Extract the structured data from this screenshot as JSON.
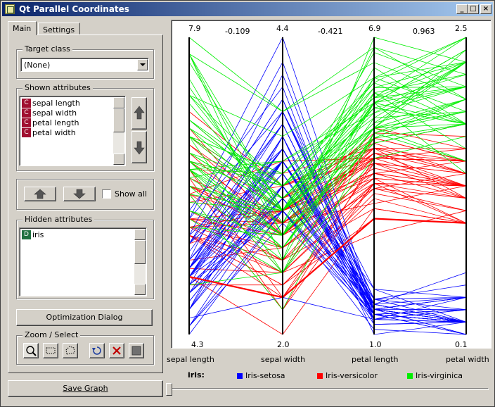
{
  "window": {
    "title": "Qt Parallel Coordinates"
  },
  "tabs": [
    {
      "label": "Main"
    },
    {
      "label": "Settings"
    }
  ],
  "target_class": {
    "label": "Target class",
    "value": "(None)"
  },
  "shown_attributes": {
    "label": "Shown attributes",
    "items": [
      {
        "badge": "C",
        "name": "sepal length"
      },
      {
        "badge": "C",
        "name": "sepal width"
      },
      {
        "badge": "C",
        "name": "petal length"
      },
      {
        "badge": "C",
        "name": "petal width"
      }
    ]
  },
  "show_all": {
    "label": "Show all"
  },
  "hidden_attributes": {
    "label": "Hidden attributes",
    "items": [
      {
        "badge": "D",
        "name": "iris"
      }
    ]
  },
  "optimization_button": {
    "label": "Optimization Dialog"
  },
  "zoom_select": {
    "label": "Zoom / Select"
  },
  "save_graph": {
    "label": "Save Graph"
  },
  "colors": {
    "setosa": "#0000ff",
    "versicolor": "#ff0000",
    "virginica": "#00ee00",
    "badge_c": "#a01030",
    "badge_d": "#207040"
  },
  "chart_data": {
    "type": "parallel-coordinates",
    "axes": [
      {
        "name": "sepal length",
        "max": "7.9",
        "min": "4.3"
      },
      {
        "name": "sepal width",
        "max": "4.4",
        "min": "2.0"
      },
      {
        "name": "petal length",
        "max": "6.9",
        "min": "1.0"
      },
      {
        "name": "petal width",
        "max": "2.5",
        "min": "0.1"
      }
    ],
    "correlations": [
      "-0.109",
      "-0.421",
      "0.963"
    ],
    "legend": {
      "title": "iris:",
      "classes": [
        {
          "name": "Iris-setosa",
          "color": "#0000ff"
        },
        {
          "name": "Iris-versicolor",
          "color": "#ff0000"
        },
        {
          "name": "Iris-virginica",
          "color": "#00ee00"
        }
      ]
    },
    "series": [
      {
        "name": "Iris-setosa",
        "color": "#0000ff",
        "samples": [
          [
            5.1,
            3.5,
            1.4,
            0.2
          ],
          [
            4.9,
            3.0,
            1.4,
            0.2
          ],
          [
            4.7,
            3.2,
            1.3,
            0.2
          ],
          [
            4.6,
            3.1,
            1.5,
            0.2
          ],
          [
            5.0,
            3.6,
            1.4,
            0.2
          ],
          [
            5.4,
            3.9,
            1.7,
            0.4
          ],
          [
            4.6,
            3.4,
            1.4,
            0.3
          ],
          [
            5.0,
            3.4,
            1.5,
            0.2
          ],
          [
            4.4,
            2.9,
            1.4,
            0.2
          ],
          [
            4.9,
            3.1,
            1.5,
            0.1
          ],
          [
            5.4,
            3.7,
            1.5,
            0.2
          ],
          [
            4.8,
            3.4,
            1.6,
            0.2
          ],
          [
            4.8,
            3.0,
            1.4,
            0.1
          ],
          [
            4.3,
            3.0,
            1.1,
            0.1
          ],
          [
            5.8,
            4.0,
            1.2,
            0.2
          ],
          [
            5.7,
            4.4,
            1.5,
            0.4
          ],
          [
            5.4,
            3.9,
            1.3,
            0.4
          ],
          [
            5.1,
            3.5,
            1.4,
            0.3
          ],
          [
            5.7,
            3.8,
            1.7,
            0.3
          ],
          [
            5.1,
            3.8,
            1.5,
            0.3
          ],
          [
            5.4,
            3.4,
            1.7,
            0.2
          ],
          [
            5.1,
            3.7,
            1.5,
            0.4
          ],
          [
            4.6,
            3.6,
            1.0,
            0.2
          ],
          [
            5.1,
            3.3,
            1.7,
            0.5
          ],
          [
            4.8,
            3.4,
            1.9,
            0.2
          ],
          [
            5.0,
            3.0,
            1.6,
            0.2
          ],
          [
            5.0,
            3.4,
            1.6,
            0.4
          ],
          [
            5.2,
            3.5,
            1.5,
            0.2
          ],
          [
            5.2,
            3.4,
            1.4,
            0.2
          ],
          [
            4.7,
            3.2,
            1.6,
            0.2
          ],
          [
            4.8,
            3.1,
            1.6,
            0.2
          ],
          [
            5.4,
            3.4,
            1.5,
            0.4
          ],
          [
            5.2,
            4.1,
            1.5,
            0.1
          ],
          [
            5.5,
            4.2,
            1.4,
            0.2
          ],
          [
            4.9,
            3.1,
            1.5,
            0.2
          ],
          [
            5.0,
            3.2,
            1.2,
            0.2
          ],
          [
            5.5,
            3.5,
            1.3,
            0.2
          ],
          [
            4.9,
            3.6,
            1.4,
            0.1
          ],
          [
            4.4,
            3.0,
            1.3,
            0.2
          ],
          [
            5.1,
            3.4,
            1.5,
            0.2
          ],
          [
            5.0,
            3.5,
            1.3,
            0.3
          ],
          [
            4.5,
            2.3,
            1.3,
            0.3
          ],
          [
            4.4,
            3.2,
            1.3,
            0.2
          ],
          [
            5.0,
            3.5,
            1.6,
            0.6
          ],
          [
            5.1,
            3.8,
            1.9,
            0.4
          ],
          [
            4.8,
            3.0,
            1.4,
            0.3
          ],
          [
            5.1,
            3.8,
            1.6,
            0.2
          ],
          [
            4.6,
            3.2,
            1.4,
            0.2
          ],
          [
            5.3,
            3.7,
            1.5,
            0.2
          ],
          [
            5.0,
            3.3,
            1.4,
            0.2
          ]
        ]
      },
      {
        "name": "Iris-versicolor",
        "color": "#ff0000",
        "samples": [
          [
            7.0,
            3.2,
            4.7,
            1.4
          ],
          [
            6.4,
            3.2,
            4.5,
            1.5
          ],
          [
            6.9,
            3.1,
            4.9,
            1.5
          ],
          [
            5.5,
            2.3,
            4.0,
            1.3
          ],
          [
            6.5,
            2.8,
            4.6,
            1.5
          ],
          [
            5.7,
            2.8,
            4.5,
            1.3
          ],
          [
            6.3,
            3.3,
            4.7,
            1.6
          ],
          [
            4.9,
            2.4,
            3.3,
            1.0
          ],
          [
            6.6,
            2.9,
            4.6,
            1.3
          ],
          [
            5.2,
            2.7,
            3.9,
            1.4
          ],
          [
            5.0,
            2.0,
            3.5,
            1.0
          ],
          [
            5.9,
            3.0,
            4.2,
            1.5
          ],
          [
            6.0,
            2.2,
            4.0,
            1.0
          ],
          [
            6.1,
            2.9,
            4.7,
            1.4
          ],
          [
            5.6,
            2.9,
            3.6,
            1.3
          ],
          [
            6.7,
            3.1,
            4.4,
            1.4
          ],
          [
            5.6,
            3.0,
            4.5,
            1.5
          ],
          [
            5.8,
            2.7,
            4.1,
            1.0
          ],
          [
            6.2,
            2.2,
            4.5,
            1.5
          ],
          [
            5.6,
            2.5,
            3.9,
            1.1
          ],
          [
            5.9,
            3.2,
            4.8,
            1.8
          ],
          [
            6.1,
            2.8,
            4.0,
            1.3
          ],
          [
            6.3,
            2.5,
            4.9,
            1.5
          ],
          [
            6.1,
            2.8,
            4.7,
            1.2
          ],
          [
            6.4,
            2.9,
            4.3,
            1.3
          ],
          [
            6.6,
            3.0,
            4.4,
            1.4
          ],
          [
            6.8,
            2.8,
            4.8,
            1.4
          ],
          [
            6.7,
            3.0,
            5.0,
            1.7
          ],
          [
            6.0,
            2.9,
            4.5,
            1.5
          ],
          [
            5.7,
            2.6,
            3.5,
            1.0
          ],
          [
            5.5,
            2.4,
            3.8,
            1.1
          ],
          [
            5.5,
            2.4,
            3.7,
            1.0
          ],
          [
            5.8,
            2.7,
            3.9,
            1.2
          ],
          [
            6.0,
            2.7,
            5.1,
            1.6
          ],
          [
            5.4,
            3.0,
            4.5,
            1.5
          ],
          [
            6.0,
            3.4,
            4.5,
            1.6
          ],
          [
            6.7,
            3.1,
            4.7,
            1.5
          ],
          [
            6.3,
            2.3,
            4.4,
            1.3
          ],
          [
            5.6,
            3.0,
            4.1,
            1.3
          ],
          [
            5.5,
            2.5,
            4.0,
            1.3
          ],
          [
            5.5,
            2.6,
            4.4,
            1.2
          ],
          [
            6.1,
            3.0,
            4.6,
            1.4
          ],
          [
            5.8,
            2.6,
            4.0,
            1.2
          ],
          [
            5.0,
            2.3,
            3.3,
            1.0
          ],
          [
            5.6,
            2.7,
            4.2,
            1.3
          ],
          [
            5.7,
            3.0,
            4.2,
            1.2
          ],
          [
            5.7,
            2.9,
            4.2,
            1.3
          ],
          [
            6.2,
            2.9,
            4.3,
            1.3
          ],
          [
            5.1,
            2.5,
            3.0,
            1.1
          ],
          [
            5.7,
            2.8,
            4.1,
            1.3
          ]
        ]
      },
      {
        "name": "Iris-virginica",
        "color": "#00ee00",
        "samples": [
          [
            6.3,
            3.3,
            6.0,
            2.5
          ],
          [
            5.8,
            2.7,
            5.1,
            1.9
          ],
          [
            7.1,
            3.0,
            5.9,
            2.1
          ],
          [
            6.3,
            2.9,
            5.6,
            1.8
          ],
          [
            6.5,
            3.0,
            5.8,
            2.2
          ],
          [
            7.6,
            3.0,
            6.6,
            2.1
          ],
          [
            4.9,
            2.5,
            4.5,
            1.7
          ],
          [
            7.3,
            2.9,
            6.3,
            1.8
          ],
          [
            6.7,
            2.5,
            5.8,
            1.8
          ],
          [
            7.2,
            3.6,
            6.1,
            2.5
          ],
          [
            6.5,
            3.2,
            5.1,
            2.0
          ],
          [
            6.4,
            2.7,
            5.3,
            1.9
          ],
          [
            6.8,
            3.0,
            5.5,
            2.1
          ],
          [
            5.7,
            2.5,
            5.0,
            2.0
          ],
          [
            5.8,
            2.8,
            5.1,
            2.4
          ],
          [
            6.4,
            3.2,
            5.3,
            2.3
          ],
          [
            6.5,
            3.0,
            5.5,
            1.8
          ],
          [
            7.7,
            3.8,
            6.7,
            2.2
          ],
          [
            7.7,
            2.6,
            6.9,
            2.3
          ],
          [
            6.0,
            2.2,
            5.0,
            1.5
          ],
          [
            6.9,
            3.2,
            5.7,
            2.3
          ],
          [
            5.6,
            2.8,
            4.9,
            2.0
          ],
          [
            7.7,
            2.8,
            6.7,
            2.0
          ],
          [
            6.3,
            2.7,
            4.9,
            1.8
          ],
          [
            6.7,
            3.3,
            5.7,
            2.1
          ],
          [
            7.2,
            3.2,
            6.0,
            1.8
          ],
          [
            6.2,
            2.8,
            4.8,
            1.8
          ],
          [
            6.1,
            3.0,
            4.9,
            1.8
          ],
          [
            6.4,
            2.8,
            5.6,
            2.1
          ],
          [
            7.2,
            3.0,
            5.8,
            1.6
          ],
          [
            7.4,
            2.8,
            6.1,
            1.9
          ],
          [
            7.9,
            3.8,
            6.4,
            2.0
          ],
          [
            6.4,
            2.8,
            5.6,
            2.2
          ],
          [
            6.3,
            2.8,
            5.1,
            1.5
          ],
          [
            6.1,
            2.6,
            5.6,
            1.4
          ],
          [
            7.7,
            3.0,
            6.1,
            2.3
          ],
          [
            6.3,
            3.4,
            5.6,
            2.4
          ],
          [
            6.4,
            3.1,
            5.5,
            1.8
          ],
          [
            6.0,
            3.0,
            4.8,
            1.8
          ],
          [
            6.9,
            3.1,
            5.4,
            2.1
          ],
          [
            6.7,
            3.1,
            5.6,
            2.4
          ],
          [
            6.9,
            3.1,
            5.1,
            2.3
          ],
          [
            5.8,
            2.7,
            5.1,
            1.9
          ],
          [
            6.8,
            3.2,
            5.9,
            2.3
          ],
          [
            6.7,
            3.3,
            5.7,
            2.5
          ],
          [
            6.7,
            3.0,
            5.2,
            2.3
          ],
          [
            6.3,
            2.5,
            5.0,
            1.9
          ],
          [
            6.5,
            3.0,
            5.2,
            2.0
          ],
          [
            6.2,
            3.4,
            5.4,
            2.3
          ],
          [
            5.9,
            3.0,
            5.1,
            1.8
          ]
        ]
      }
    ],
    "highlighted": {
      "class": "Iris-versicolor",
      "values": [
        5.0,
        2.3,
        3.3,
        1.0
      ]
    }
  }
}
